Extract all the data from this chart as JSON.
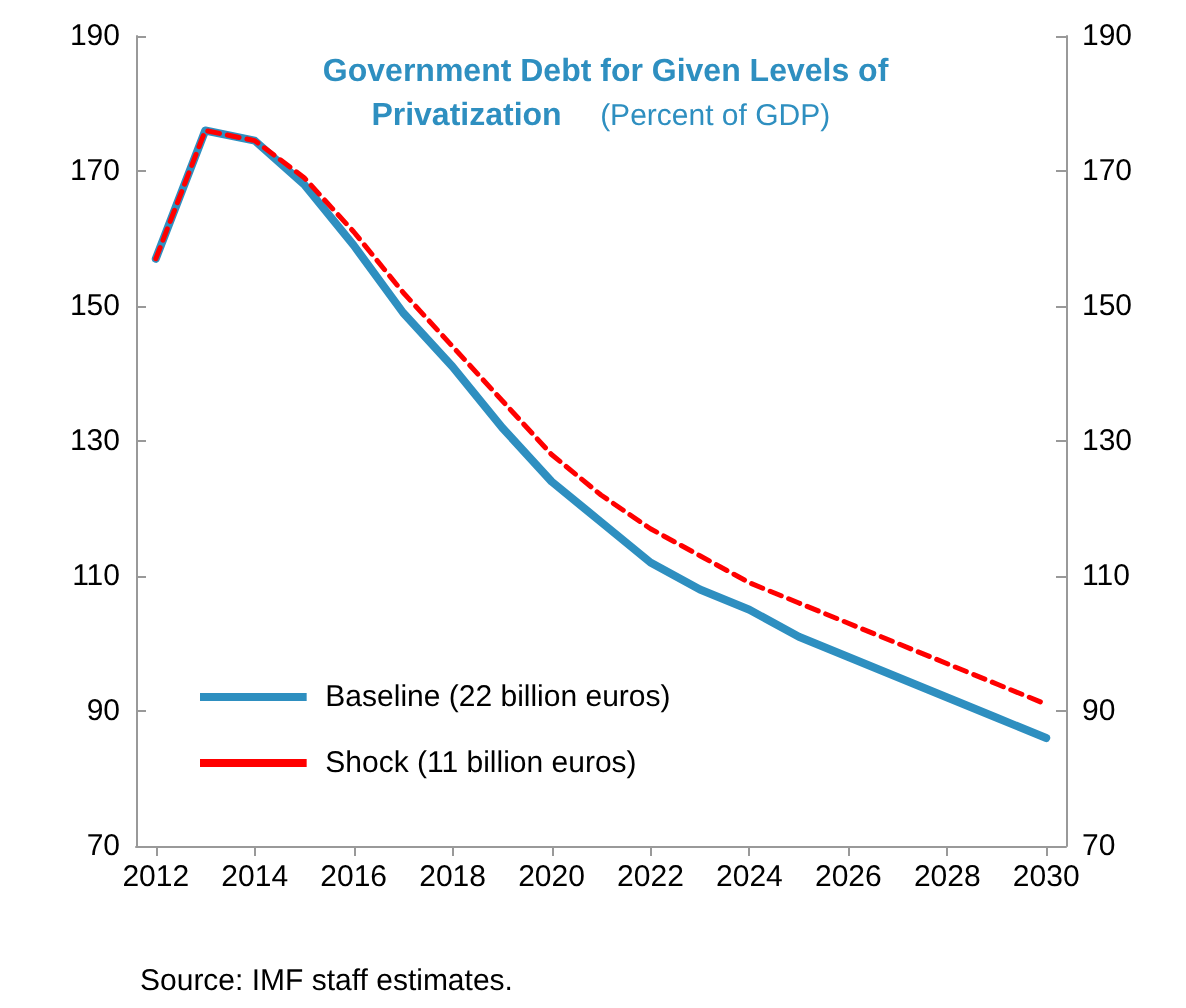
{
  "chart_data": {
    "type": "line",
    "title": "Government Debt for Given Levels of Privatization",
    "subtitle": "(Percent of GDP)",
    "x": [
      2012,
      2013,
      2014,
      2015,
      2016,
      2017,
      2018,
      2019,
      2020,
      2021,
      2022,
      2023,
      2024,
      2025,
      2026,
      2027,
      2028,
      2029,
      2030
    ],
    "series": [
      {
        "name": "Baseline (22 billion euros)",
        "color": "#2e8fc0",
        "line_style": "solid",
        "values": [
          157,
          176,
          174.5,
          168,
          159,
          149,
          141,
          132,
          124,
          118,
          112,
          108,
          105,
          101,
          98,
          95,
          92,
          89,
          86
        ]
      },
      {
        "name": "Shock (11 billion euros)",
        "color": "#ff0000",
        "line_style": "dashed",
        "values": [
          157,
          176,
          174.5,
          169,
          161,
          152,
          144,
          136,
          128,
          122,
          117,
          113,
          109,
          106,
          103,
          100,
          97,
          94,
          91
        ]
      }
    ],
    "xlim": [
      2011.6,
      2030.4
    ],
    "xticks": [
      2012,
      2014,
      2016,
      2018,
      2020,
      2022,
      2024,
      2026,
      2028,
      2030
    ],
    "ylim": [
      70,
      190
    ],
    "yticks": [
      70,
      90,
      110,
      130,
      150,
      170,
      190
    ],
    "y2lim": [
      70,
      190
    ],
    "y2ticks": [
      70,
      90,
      110,
      130,
      150,
      170,
      190
    ],
    "grid": false,
    "legend": "bottom left",
    "marker": "none",
    "annotations": [
      "Source: IMF staff estimates."
    ]
  }
}
